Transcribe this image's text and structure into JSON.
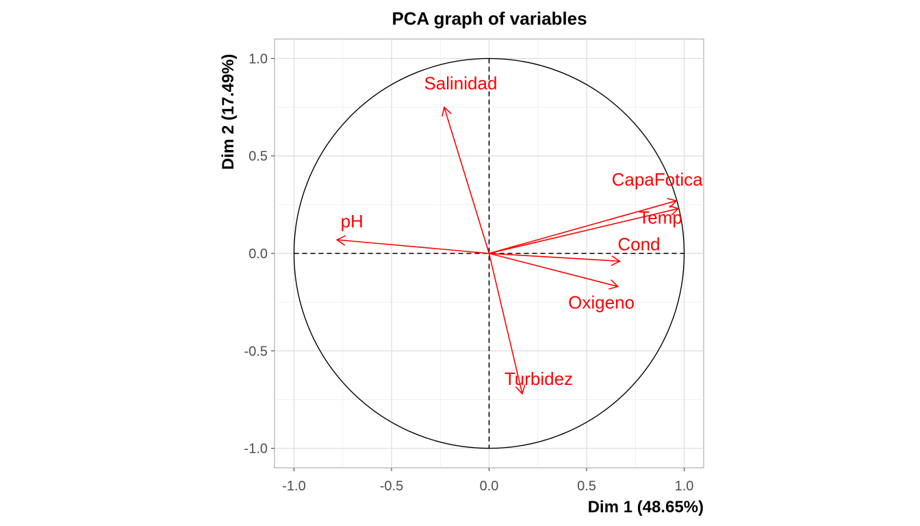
{
  "chart_data": {
    "type": "scatter",
    "title": "PCA graph of variables",
    "xlabel": "Dim 1 (48.65%)",
    "ylabel": "Dim 2 (17.49%)",
    "xlim": [
      -1.1,
      1.1
    ],
    "ylim": [
      -1.1,
      1.1
    ],
    "x_ticks": [
      -1.0,
      -0.5,
      0.0,
      0.5,
      1.0
    ],
    "y_ticks": [
      -1.0,
      -0.5,
      0.0,
      0.5,
      1.0
    ],
    "x_tick_labels": [
      "-1.0",
      "-0.5",
      "0.0",
      "0.5",
      "1.0"
    ],
    "y_tick_labels": [
      "-1.0",
      "-0.5",
      "0.0",
      "0.5",
      "1.0"
    ],
    "grid": true,
    "unit_circle": true,
    "arrow_color": "#ff0000",
    "variables": [
      {
        "name": "Salinidad",
        "x": -0.23,
        "y": 0.75
      },
      {
        "name": "CapaFotica",
        "x": 0.96,
        "y": 0.27
      },
      {
        "name": "Temp",
        "x": 0.97,
        "y": 0.23
      },
      {
        "name": "pH",
        "x": -0.78,
        "y": 0.07
      },
      {
        "name": "Cond",
        "x": 0.67,
        "y": -0.04
      },
      {
        "name": "Oxigeno",
        "x": 0.66,
        "y": -0.17
      },
      {
        "name": "Turbidez",
        "x": 0.17,
        "y": -0.72
      }
    ]
  }
}
